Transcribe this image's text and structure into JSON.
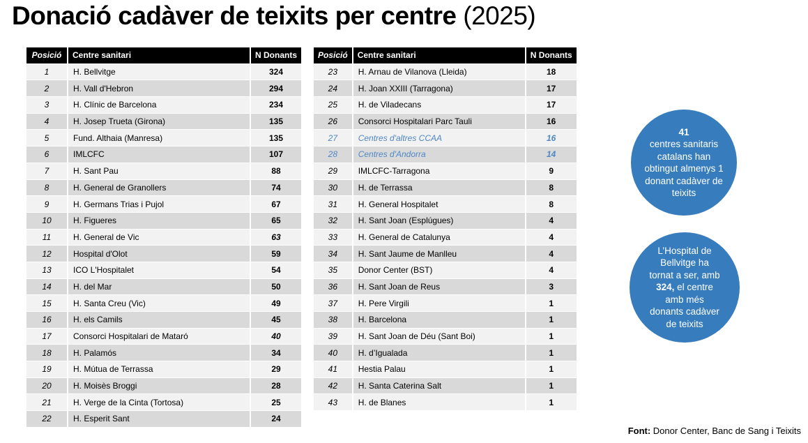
{
  "title": {
    "main": "Donació cadàver de teixits per centre",
    "suffix": " (2025)"
  },
  "columns": {
    "position": "Posició",
    "center": "Centre sanitari",
    "donors": "N Donants"
  },
  "tables": [
    {
      "rows": [
        {
          "pos": "1",
          "name": "H. Bellvitge",
          "value": "324"
        },
        {
          "pos": "2",
          "name": "H. Vall d'Hebron",
          "value": "294"
        },
        {
          "pos": "3",
          "name": "H. Clínic de Barcelona",
          "value": "234"
        },
        {
          "pos": "4",
          "name": "H. Josep Trueta (Girona)",
          "value": "135"
        },
        {
          "pos": "5",
          "name": "Fund. Althaia (Manresa)",
          "value": "135"
        },
        {
          "pos": "6",
          "name": "IMLCFC",
          "value": "107"
        },
        {
          "pos": "7",
          "name": "H. Sant Pau",
          "value": "88"
        },
        {
          "pos": "8",
          "name": "H. General de Granollers",
          "value": "74"
        },
        {
          "pos": "9",
          "name": "H. Germans Trias i Pujol",
          "value": "67"
        },
        {
          "pos": "10",
          "name": "H. Figueres",
          "value": "65"
        },
        {
          "pos": "11",
          "name": "H. General de Vic",
          "value": "63",
          "style": "value-italic"
        },
        {
          "pos": "12",
          "name": "Hospital d'Olot",
          "value": "59"
        },
        {
          "pos": "13",
          "name": "ICO L'Hospitalet",
          "value": "54"
        },
        {
          "pos": "14",
          "name": "H. del Mar",
          "value": "50"
        },
        {
          "pos": "15",
          "name": "H. Santa Creu (Vic)",
          "value": "49"
        },
        {
          "pos": "16",
          "name": "H. els Camils",
          "value": "45"
        },
        {
          "pos": "17",
          "name": "Consorci Hospitalari de Mataró",
          "value": "40",
          "style": "value-italic"
        },
        {
          "pos": "18",
          "name": "H. Palamós",
          "value": "34"
        },
        {
          "pos": "19",
          "name": "H. Mútua de Terrassa",
          "value": "29"
        },
        {
          "pos": "20",
          "name": "H. Moisès Broggi",
          "value": "28"
        },
        {
          "pos": "21",
          "name": "H. Verge de la Cinta (Tortosa)",
          "value": "25"
        },
        {
          "pos": "22",
          "name": "H. Esperit Sant",
          "value": "24"
        }
      ]
    },
    {
      "rows": [
        {
          "pos": "23",
          "name": "H. Arnau de Vilanova (Lleida)",
          "value": "18"
        },
        {
          "pos": "24",
          "name": "H. Joan XXIII (Tarragona)",
          "value": "17"
        },
        {
          "pos": "25",
          "name": "H. de Viladecans",
          "value": "17"
        },
        {
          "pos": "26",
          "name": "Consorci Hospitalari Parc Tauli",
          "value": "16"
        },
        {
          "pos": "27",
          "name": "Centres d'altres CCAA",
          "value": "16",
          "style": "blue"
        },
        {
          "pos": "28",
          "name": "Centres d'Andorra",
          "value": "14",
          "style": "blue"
        },
        {
          "pos": "29",
          "name": "IMLCFC-Tarragona",
          "value": "9"
        },
        {
          "pos": "30",
          "name": "H. de Terrassa",
          "value": "8"
        },
        {
          "pos": "31",
          "name": "H. General Hospitalet",
          "value": "8"
        },
        {
          "pos": "32",
          "name": "H. Sant Joan (Esplúgues)",
          "value": "4"
        },
        {
          "pos": "33",
          "name": "H. General de Catalunya",
          "value": "4"
        },
        {
          "pos": "34",
          "name": "H. Sant Jaume de Manlleu",
          "value": "4"
        },
        {
          "pos": "35",
          "name": "Donor Center (BST)",
          "value": "4"
        },
        {
          "pos": "36",
          "name": "H. Sant Joan de Reus",
          "value": "3"
        },
        {
          "pos": "37",
          "name": "H. Pere Virgili",
          "value": "1"
        },
        {
          "pos": "38",
          "name": "H. Barcelona",
          "value": "1"
        },
        {
          "pos": "39",
          "name": "H. Sant Joan de Déu (Sant Boi)",
          "value": "1"
        },
        {
          "pos": "40",
          "name": "H. d’Igualada",
          "value": "1"
        },
        {
          "pos": "41",
          "name": "Hestia Palau",
          "value": "1"
        },
        {
          "pos": "42",
          "name": "H. Santa Caterina Salt",
          "value": "1"
        },
        {
          "pos": "43",
          "name": "H. de Blanes",
          "value": "1"
        }
      ]
    }
  ],
  "callouts": [
    {
      "highlight": "41",
      "text": "centres sanitaris catalans han obtingut almenys 1 donant cadàver de teixits"
    },
    {
      "pre": "L’Hospital de Bellvitge ha tornat a ser, amb ",
      "bold": "324,",
      "post": " el centre amb més donants cadàver de teixits"
    }
  ],
  "footer": {
    "label": "Font:",
    "text": " Donor Center, Banc de Sang i Teixits"
  },
  "colors": {
    "header_bg": "#000000",
    "header_fg": "#ffffff",
    "row_light": "#f2f2f2",
    "row_dark": "#d9d9d9",
    "blue_text": "#4e87c4",
    "circle_blue": "#377cbd",
    "text": "#000000"
  }
}
